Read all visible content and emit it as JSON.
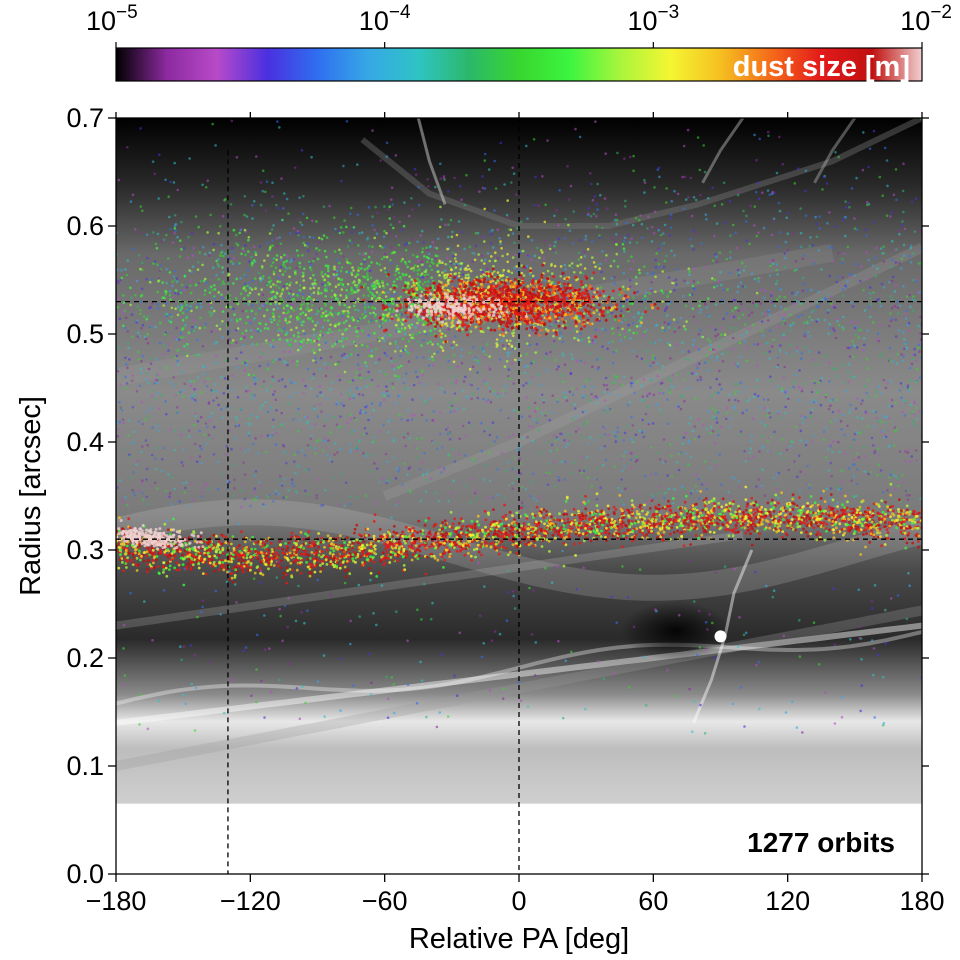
{
  "chart_data": {
    "type": "scatter",
    "xlabel": "Relative PA [deg]",
    "ylabel": "Radius [arcsec]",
    "xlim": [
      -180,
      180
    ],
    "ylim": [
      0.0,
      0.7
    ],
    "x_ticks": [
      "−180",
      "−120",
      "−60",
      "0",
      "60",
      "120",
      "180"
    ],
    "x_tick_values": [
      -180,
      -120,
      -60,
      0,
      60,
      120,
      180
    ],
    "y_ticks": [
      "0.0",
      "0.1",
      "0.2",
      "0.3",
      "0.4",
      "0.5",
      "0.6",
      "0.7"
    ],
    "y_tick_values": [
      0.0,
      0.1,
      0.2,
      0.3,
      0.4,
      0.5,
      0.6,
      0.7
    ],
    "colorbar": {
      "label": "dust size [m]",
      "scale": "log",
      "range": [
        1e-05,
        0.01
      ],
      "ticks": [
        {
          "base": "10",
          "exp": "−5",
          "value": 1e-05
        },
        {
          "base": "10",
          "exp": "−4",
          "value": 0.0001
        },
        {
          "base": "10",
          "exp": "−3",
          "value": 0.001
        },
        {
          "base": "10",
          "exp": "−2",
          "value": 0.01
        }
      ],
      "colors": [
        "#000000",
        "#8c2aa0",
        "#b84ac8",
        "#4a30e0",
        "#2f6ff0",
        "#36a8e6",
        "#2fc4c4",
        "#2bb86a",
        "#38d630",
        "#3cf540",
        "#a8f53c",
        "#f5f532",
        "#f5c020",
        "#f56a1a",
        "#e31a1a",
        "#c01010",
        "#f0d0d0"
      ]
    },
    "reference_lines": {
      "vertical_x": [
        -130,
        0
      ],
      "horizontal_y": [
        0.31,
        0.53
      ]
    },
    "planet": {
      "x": 90,
      "y": 0.22,
      "color": "#ffffff"
    },
    "features": {
      "outer_ring_center_y": 0.53,
      "outer_ring_bright_x_range": [
        -40,
        35
      ],
      "inner_ring_center_y": 0.31
    },
    "annotation": "1277 orbits",
    "grid": false
  }
}
